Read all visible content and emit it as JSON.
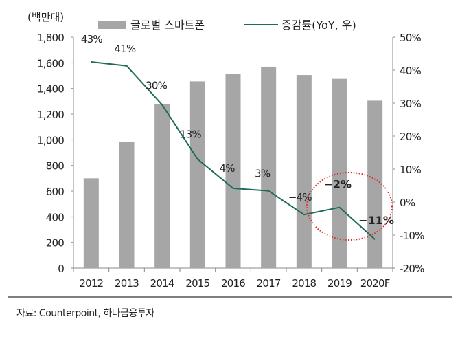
{
  "chart_data": {
    "type": "bar+line",
    "unit_left": "(백만대)",
    "categories": [
      "2012",
      "2013",
      "2014",
      "2015",
      "2016",
      "2017",
      "2018",
      "2019",
      "2020F"
    ],
    "series": [
      {
        "name": "글로벌 스마트폰",
        "type": "bar",
        "axis": "left",
        "color": "#a6a6a6",
        "values": [
          700,
          985,
          1275,
          1455,
          1515,
          1570,
          1505,
          1475,
          1305
        ]
      },
      {
        "name": "증감률(YoY, 우)",
        "type": "line",
        "axis": "right",
        "color": "#1e6b5c",
        "values": [
          42.5,
          41.3,
          29.5,
          13,
          4.2,
          3.4,
          -3.8,
          -1.6,
          -11.3
        ],
        "labels": [
          "43%",
          "41%",
          "30%",
          "13%",
          "4%",
          "3%",
          "-4%",
          "-2%",
          "-11%"
        ]
      }
    ],
    "ylim_left": [
      0,
      1800
    ],
    "yticks_left": [
      "0",
      "200",
      "400",
      "600",
      "800",
      "1,000",
      "1,200",
      "1,400",
      "1,600",
      "1,800"
    ],
    "ylim_right": [
      -20,
      50
    ],
    "yticks_right": [
      "-20%",
      "-10%",
      "0%",
      "10%",
      "20%",
      "30%",
      "40%",
      "50%"
    ],
    "highlight": {
      "type": "dotted-ellipse",
      "color": "#d9302c",
      "around": [
        "2019",
        "2020F"
      ]
    },
    "grid": false,
    "legend": "top"
  },
  "source": "자료: Counterpoint, 하나금융투자"
}
